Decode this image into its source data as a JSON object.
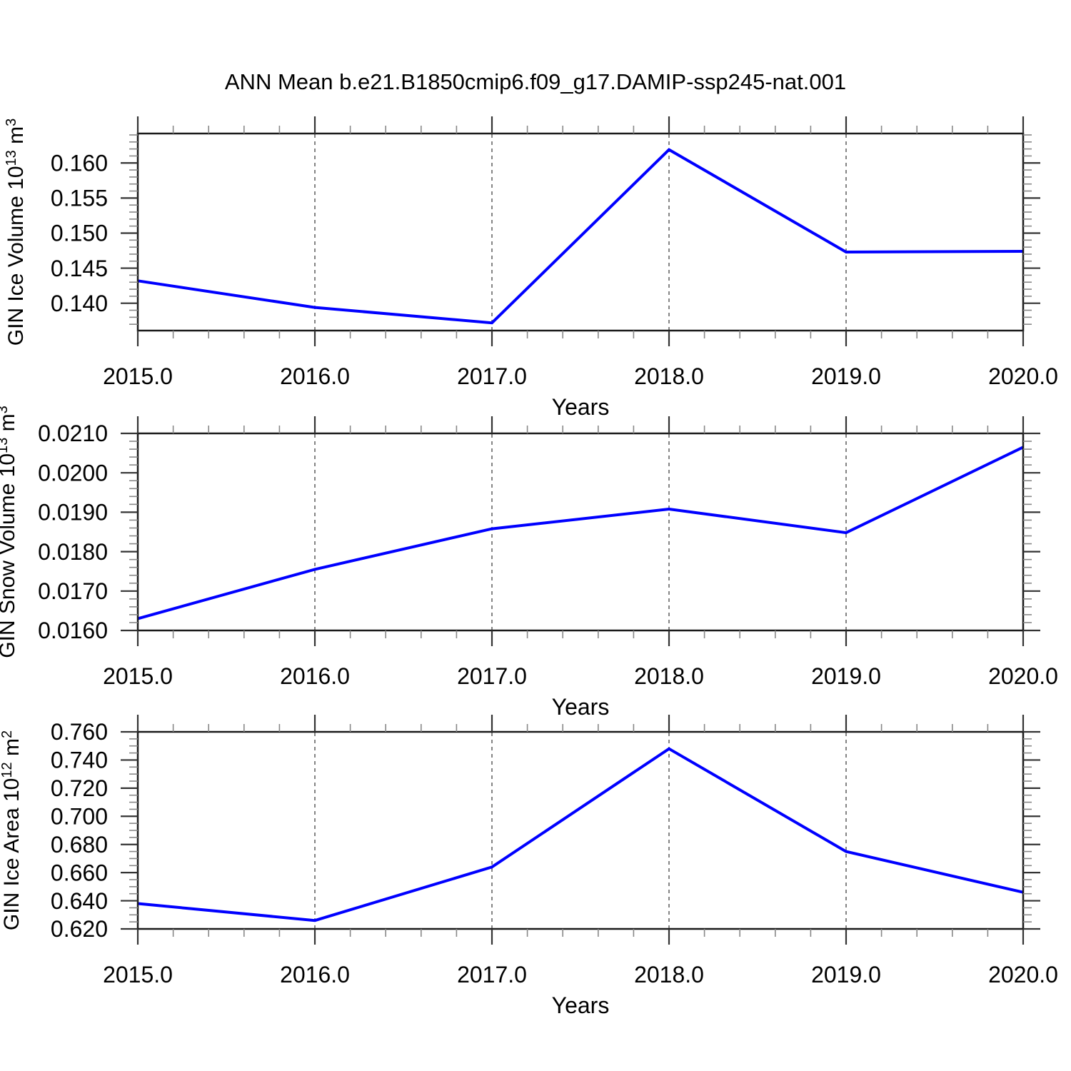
{
  "title": "ANN Mean b.e21.B1850cmip6.f09_g17.DAMIP-ssp245-nat.001",
  "line_color": "#0000ff",
  "grid_color": "#777777",
  "frame_color": "#1a1a1a",
  "chart_data": [
    {
      "type": "line",
      "series_name": "GIN Ice Volume",
      "ylabel_text": "GIN Ice Volume 10^13 m^3",
      "ylabel_parts": [
        {
          "t": "GIN Ice Volume 10",
          "sup": false
        },
        {
          "t": "13",
          "sup": true
        },
        {
          "t": " m",
          "sup": false
        },
        {
          "t": "3",
          "sup": true
        }
      ],
      "xlabel": "Years",
      "x": [
        2015.0,
        2016.0,
        2017.0,
        2018.0,
        2019.0,
        2020.0
      ],
      "values": [
        0.1432,
        0.1394,
        0.1372,
        0.1619,
        0.1473,
        0.1474
      ],
      "xlim": [
        2015.0,
        2020.0
      ],
      "ylim": [
        0.1361,
        0.1642
      ],
      "xticks": [
        2015.0,
        2016.0,
        2017.0,
        2018.0,
        2019.0,
        2020.0
      ],
      "xtick_labels": [
        "2015.0",
        "2016.0",
        "2017.0",
        "2018.0",
        "2019.0",
        "2020.0"
      ],
      "x_minor_step": 0.2,
      "yticks": [
        0.14,
        0.145,
        0.15,
        0.155,
        0.16
      ],
      "ytick_labels": [
        "0.140",
        "0.145",
        "0.150",
        "0.155",
        "0.160"
      ],
      "y_minor_step": 0.001,
      "gridlines_x": [
        2016.0,
        2017.0,
        2018.0,
        2019.0
      ],
      "grid_style": "vertical-dashed",
      "legend": "none"
    },
    {
      "type": "line",
      "series_name": "GIN Snow Volume",
      "ylabel_text": "GIN Snow Volume 10^13 m^3",
      "ylabel_parts": [
        {
          "t": "GIN Snow Volume 10",
          "sup": false
        },
        {
          "t": "13",
          "sup": true
        },
        {
          "t": " m",
          "sup": false
        },
        {
          "t": "3",
          "sup": true
        }
      ],
      "xlabel": "Years",
      "x": [
        2015.0,
        2016.0,
        2017.0,
        2018.0,
        2019.0,
        2020.0
      ],
      "values": [
        0.0163,
        0.01755,
        0.01858,
        0.01908,
        0.01848,
        0.02065
      ],
      "xlim": [
        2015.0,
        2020.0
      ],
      "ylim": [
        0.016,
        0.021
      ],
      "xticks": [
        2015.0,
        2016.0,
        2017.0,
        2018.0,
        2019.0,
        2020.0
      ],
      "xtick_labels": [
        "2015.0",
        "2016.0",
        "2017.0",
        "2018.0",
        "2019.0",
        "2020.0"
      ],
      "x_minor_step": 0.2,
      "yticks": [
        0.016,
        0.017,
        0.018,
        0.019,
        0.02,
        0.021
      ],
      "ytick_labels": [
        "0.0160",
        "0.0170",
        "0.0180",
        "0.0190",
        "0.0200",
        "0.0210"
      ],
      "y_minor_step": 0.0002,
      "gridlines_x": [
        2016.0,
        2017.0,
        2018.0,
        2019.0
      ],
      "grid_style": "vertical-dashed",
      "legend": "none"
    },
    {
      "type": "line",
      "series_name": "GIN Ice Area",
      "ylabel_text": "GIN Ice Area 10^12 m^2",
      "ylabel_parts": [
        {
          "t": "GIN Ice Area 10",
          "sup": false
        },
        {
          "t": "12",
          "sup": true
        },
        {
          "t": " m",
          "sup": false
        },
        {
          "t": "2",
          "sup": true
        }
      ],
      "xlabel": "Years",
      "x": [
        2015.0,
        2016.0,
        2017.0,
        2018.0,
        2019.0,
        2020.0
      ],
      "values": [
        0.638,
        0.626,
        0.664,
        0.748,
        0.675,
        0.646
      ],
      "xlim": [
        2015.0,
        2020.0
      ],
      "ylim": [
        0.62,
        0.76
      ],
      "xticks": [
        2015.0,
        2016.0,
        2017.0,
        2018.0,
        2019.0,
        2020.0
      ],
      "xtick_labels": [
        "2015.0",
        "2016.0",
        "2017.0",
        "2018.0",
        "2019.0",
        "2020.0"
      ],
      "x_minor_step": 0.2,
      "yticks": [
        0.62,
        0.64,
        0.66,
        0.68,
        0.7,
        0.72,
        0.74,
        0.76
      ],
      "ytick_labels": [
        "0.620",
        "0.640",
        "0.660",
        "0.680",
        "0.700",
        "0.720",
        "0.740",
        "0.760"
      ],
      "y_minor_step": 0.005,
      "gridlines_x": [
        2016.0,
        2017.0,
        2018.0,
        2019.0
      ],
      "grid_style": "vertical-dashed",
      "legend": "none"
    }
  ]
}
